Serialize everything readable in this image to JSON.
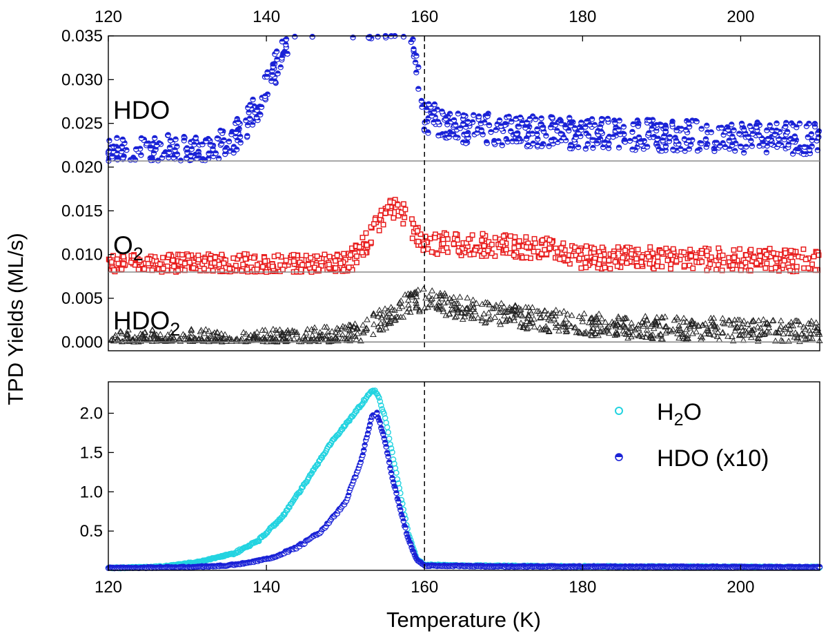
{
  "chart_data": {
    "type": "scatter",
    "x_axis": {
      "label": "Temperature (K)",
      "range": [
        120,
        210
      ],
      "ticks": [
        120,
        140,
        160,
        180,
        200
      ]
    },
    "y_axis_label": "TPD Yields (ML/s)",
    "reference_line_x": 160,
    "upper_panel": {
      "ylim": [
        -0.001,
        0.035
      ],
      "ticks": [
        "0.000",
        "0.005",
        "0.010",
        "0.015",
        "0.020",
        "0.025",
        "0.030",
        "0.035"
      ],
      "baselines": [
        0.0,
        0.008,
        0.0207
      ],
      "series": [
        {
          "name": "HDO",
          "label_main": "HDO",
          "label_sub": "",
          "color": "#1a22d6",
          "marker": "half-circle",
          "baseline": 0.0207,
          "profile_x": [
            120,
            130,
            135,
            137,
            139,
            141,
            142.5,
            143.5,
            158,
            159,
            160,
            165,
            180,
            210
          ],
          "profile_y": [
            0.0217,
            0.022,
            0.0226,
            0.0245,
            0.027,
            0.031,
            0.034,
            0.0365,
            0.0365,
            0.031,
            0.0258,
            0.0245,
            0.0238,
            0.0232
          ],
          "spread": 0.0018
        },
        {
          "name": "O2",
          "label_main": "O",
          "label_sub": "2",
          "color": "#e81c1c",
          "marker": "square",
          "baseline": 0.008,
          "profile_x": [
            120,
            150,
            152,
            154,
            156,
            157.5,
            159,
            160,
            165,
            175,
            180,
            210
          ],
          "profile_y": [
            0.0088,
            0.0088,
            0.0105,
            0.0135,
            0.0155,
            0.0145,
            0.012,
            0.0112,
            0.0112,
            0.0108,
            0.0097,
            0.0093
          ],
          "spread": 0.0013
        },
        {
          "name": "HDO2",
          "label_main": "HDO",
          "label_sub": "2",
          "color": "#222222",
          "marker": "triangle",
          "baseline": 0.0,
          "profile_x": [
            120,
            140,
            150,
            152,
            155,
            158,
            160,
            165,
            175,
            185,
            210
          ],
          "profile_y": [
            0.0001,
            0.0002,
            0.0005,
            0.0012,
            0.0028,
            0.0045,
            0.0048,
            0.0038,
            0.0025,
            0.0017,
            0.0012
          ],
          "spread": 0.0013
        }
      ]
    },
    "lower_panel": {
      "ylim": [
        0,
        2.4
      ],
      "ticks": [
        "0.5",
        "1.0",
        "1.5",
        "2.0"
      ],
      "series": [
        {
          "name": "H2O",
          "legend_main": "H",
          "legend_sub": "2",
          "legend_tail": "O",
          "color": "#22d3e0",
          "marker": "circle",
          "profile_x": [
            120,
            125,
            128,
            132,
            136,
            139,
            142,
            145,
            148,
            151,
            152.5,
            153.3,
            154,
            155,
            156,
            157,
            158,
            159,
            160,
            165,
            180,
            210
          ],
          "profile_y": [
            0.03,
            0.04,
            0.06,
            0.12,
            0.22,
            0.38,
            0.68,
            1.12,
            1.6,
            1.98,
            2.18,
            2.3,
            2.26,
            1.95,
            1.45,
            0.95,
            0.45,
            0.15,
            0.07,
            0.06,
            0.05,
            0.04
          ]
        },
        {
          "name": "HDO (x10)",
          "legend_main": "HDO (x10)",
          "legend_sub": "",
          "legend_tail": "",
          "color": "#1a22d6",
          "marker": "half-circle",
          "profile_x": [
            120,
            130,
            135,
            138,
            141,
            144,
            147,
            150,
            152,
            153.3,
            154,
            155,
            156,
            157,
            158,
            159,
            160,
            170,
            210
          ],
          "profile_y": [
            0.03,
            0.04,
            0.06,
            0.1,
            0.17,
            0.3,
            0.5,
            0.86,
            1.4,
            1.95,
            2.0,
            1.65,
            1.15,
            0.75,
            0.38,
            0.14,
            0.06,
            0.05,
            0.04
          ]
        }
      ]
    }
  }
}
